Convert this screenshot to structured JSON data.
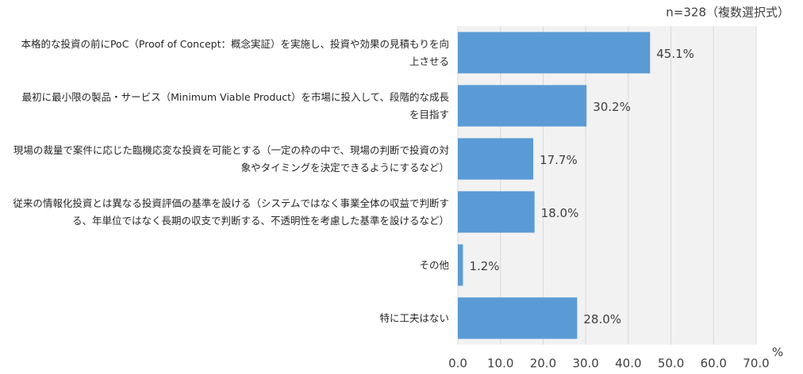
{
  "chart_data": {
    "type": "bar",
    "orientation": "horizontal",
    "note": "n=328（複数選択式）",
    "x_unit": "%",
    "categories": [
      "本格的な投資の前にPoC（Proof of Concept：概念実証）を実施し、投資や効果の見積もりを向上させる",
      "最初に最小限の製品・サービス（Minimum Viable Product）を市場に投入して、段階的な成長を目指す",
      "現場の裁量で案件に応じた臨機応変な投資を可能とする（一定の枠の中で、現場の判断で投資の対象やタイミングを決定できるようにするなど）",
      "従来の情報化投資とは異なる投資評価の基準を設ける（システムではなく事業全体の収益で判断する、年単位ではなく長期の収支で判断する、不透明性を考慮した基準を設けるなど）",
      "その他",
      "特に工夫はない"
    ],
    "values": [
      45.1,
      30.2,
      17.7,
      18.0,
      1.2,
      28.0
    ],
    "value_labels": [
      "45.1%",
      "30.2%",
      "17.7%",
      "18.0%",
      "1.2%",
      "28.0%"
    ],
    "color": "#5b9bd5",
    "xlim": [
      0,
      70
    ],
    "xticks": [
      {
        "value": 0,
        "label": "0.0"
      },
      {
        "value": 10,
        "label": "10.0"
      },
      {
        "value": 20,
        "label": "20.0"
      },
      {
        "value": 30,
        "label": "30.0"
      },
      {
        "value": 40,
        "label": "40.0"
      },
      {
        "value": 50,
        "label": "50.0"
      },
      {
        "value": 60,
        "label": "60.0"
      },
      {
        "value": 70,
        "label": "70.0"
      }
    ],
    "grid": true
  }
}
